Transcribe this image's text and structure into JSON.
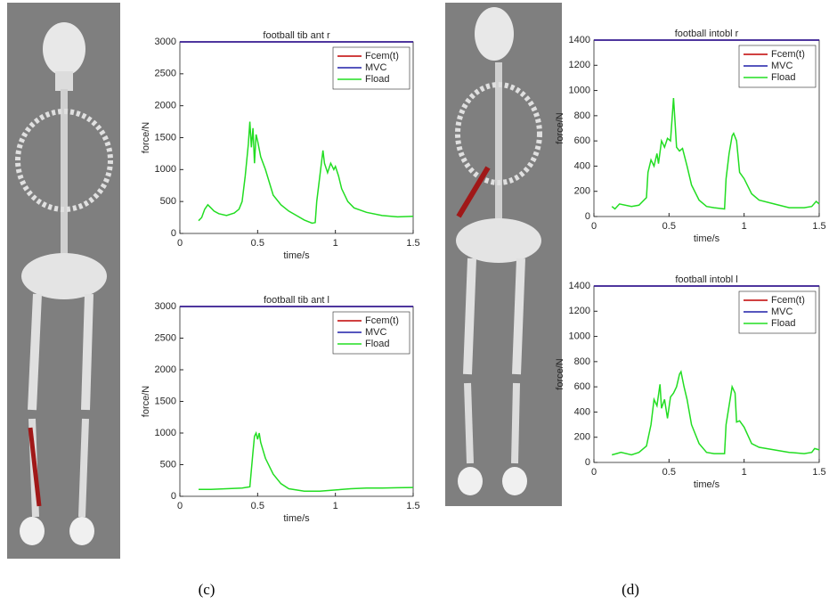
{
  "chart_data": [
    {
      "type": "line",
      "title": "football tib ant r",
      "xlabel": "time/s",
      "ylabel": "force/N",
      "legend": "upper right",
      "xlim": [
        0,
        1.5
      ],
      "xticks": [
        0,
        0.5,
        1,
        1.5
      ],
      "ylim": [
        0,
        3000
      ],
      "yticks": [
        0,
        500,
        1000,
        1500,
        2000,
        2500,
        3000
      ],
      "series": [
        {
          "name": "Fcem(t)",
          "color": "#c00000",
          "x": [
            0,
            1.5
          ],
          "values": [
            3000,
            3000
          ]
        },
        {
          "name": "MVC",
          "color": "#1f1fa8",
          "x": [
            0,
            1.5
          ],
          "values": [
            3000,
            3000
          ]
        },
        {
          "name": "Fload",
          "color": "#22dd22",
          "x": [
            0.12,
            0.14,
            0.16,
            0.18,
            0.2,
            0.22,
            0.25,
            0.3,
            0.35,
            0.38,
            0.4,
            0.42,
            0.44,
            0.45,
            0.46,
            0.47,
            0.48,
            0.49,
            0.5,
            0.52,
            0.55,
            0.6,
            0.65,
            0.7,
            0.75,
            0.8,
            0.85,
            0.87,
            0.88,
            0.9,
            0.92,
            0.93,
            0.95,
            0.97,
            0.99,
            1.0,
            1.02,
            1.04,
            1.08,
            1.12,
            1.2,
            1.3,
            1.4,
            1.5
          ],
          "values": [
            200,
            250,
            380,
            450,
            400,
            350,
            310,
            280,
            320,
            380,
            500,
            900,
            1400,
            1750,
            1350,
            1650,
            1100,
            1550,
            1450,
            1200,
            1000,
            600,
            450,
            350,
            280,
            210,
            160,
            170,
            500,
            900,
            1300,
            1100,
            950,
            1100,
            1000,
            1050,
            900,
            700,
            500,
            400,
            330,
            280,
            260,
            270
          ]
        }
      ]
    },
    {
      "type": "line",
      "title": "football tib ant l",
      "xlabel": "time/s",
      "ylabel": "force/N",
      "legend": "upper right",
      "xlim": [
        0,
        1.5
      ],
      "xticks": [
        0,
        0.5,
        1,
        1.5
      ],
      "ylim": [
        0,
        3000
      ],
      "yticks": [
        0,
        500,
        1000,
        1500,
        2000,
        2500,
        3000
      ],
      "series": [
        {
          "name": "Fcem(t)",
          "color": "#c00000",
          "x": [
            0,
            1.5
          ],
          "values": [
            3000,
            3000
          ]
        },
        {
          "name": "MVC",
          "color": "#1f1fa8",
          "x": [
            0,
            1.5
          ],
          "values": [
            3000,
            3000
          ]
        },
        {
          "name": "Fload",
          "color": "#22dd22",
          "x": [
            0.12,
            0.2,
            0.3,
            0.4,
            0.45,
            0.47,
            0.48,
            0.49,
            0.5,
            0.51,
            0.52,
            0.55,
            0.6,
            0.65,
            0.7,
            0.8,
            0.9,
            1.0,
            1.1,
            1.2,
            1.3,
            1.4,
            1.5
          ],
          "values": [
            110,
            110,
            120,
            130,
            150,
            700,
            950,
            1000,
            900,
            1000,
            850,
            600,
            350,
            200,
            120,
            80,
            80,
            100,
            120,
            130,
            130,
            135,
            140
          ]
        }
      ]
    },
    {
      "type": "line",
      "title": "football intobl r",
      "xlabel": "time/s",
      "ylabel": "force/N",
      "legend": "upper right",
      "xlim": [
        0,
        1.5
      ],
      "xticks": [
        0,
        0.5,
        1,
        1.5
      ],
      "ylim": [
        0,
        1400
      ],
      "yticks": [
        0,
        200,
        400,
        600,
        800,
        1000,
        1200,
        1400
      ],
      "series": [
        {
          "name": "Fcem(t)",
          "color": "#c00000",
          "x": [
            0,
            1.5
          ],
          "values": [
            1400,
            1400
          ]
        },
        {
          "name": "MVC",
          "color": "#1f1fa8",
          "x": [
            0,
            1.5
          ],
          "values": [
            1400,
            1400
          ]
        },
        {
          "name": "Fload",
          "color": "#22dd22",
          "x": [
            0.12,
            0.14,
            0.17,
            0.25,
            0.3,
            0.35,
            0.36,
            0.38,
            0.4,
            0.42,
            0.43,
            0.45,
            0.47,
            0.49,
            0.51,
            0.53,
            0.54,
            0.55,
            0.57,
            0.59,
            0.62,
            0.65,
            0.7,
            0.75,
            0.8,
            0.87,
            0.88,
            0.9,
            0.92,
            0.93,
            0.95,
            0.97,
            1.0,
            1.05,
            1.1,
            1.2,
            1.3,
            1.4,
            1.45,
            1.48,
            1.5
          ],
          "values": [
            80,
            60,
            100,
            80,
            90,
            150,
            350,
            450,
            400,
            500,
            420,
            600,
            550,
            620,
            600,
            940,
            750,
            550,
            520,
            540,
            400,
            250,
            130,
            80,
            70,
            60,
            300,
            500,
            640,
            660,
            600,
            350,
            300,
            180,
            130,
            100,
            70,
            70,
            80,
            120,
            100
          ]
        }
      ]
    },
    {
      "type": "line",
      "title": "football intobl l",
      "xlabel": "time/s",
      "ylabel": "force/N",
      "legend": "upper right",
      "xlim": [
        0,
        1.5
      ],
      "xticks": [
        0,
        0.5,
        1,
        1.5
      ],
      "ylim": [
        0,
        1400
      ],
      "yticks": [
        0,
        200,
        400,
        600,
        800,
        1000,
        1200,
        1400
      ],
      "series": [
        {
          "name": "Fcem(t)",
          "color": "#c00000",
          "x": [
            0,
            1.5
          ],
          "values": [
            1400,
            1400
          ]
        },
        {
          "name": "MVC",
          "color": "#1f1fa8",
          "x": [
            0,
            1.5
          ],
          "values": [
            1400,
            1400
          ]
        },
        {
          "name": "Fload",
          "color": "#22dd22",
          "x": [
            0.12,
            0.15,
            0.18,
            0.25,
            0.3,
            0.35,
            0.38,
            0.4,
            0.42,
            0.44,
            0.45,
            0.47,
            0.49,
            0.51,
            0.53,
            0.55,
            0.57,
            0.58,
            0.6,
            0.62,
            0.65,
            0.7,
            0.75,
            0.8,
            0.87,
            0.88,
            0.9,
            0.92,
            0.94,
            0.95,
            0.97,
            1.0,
            1.05,
            1.1,
            1.2,
            1.3,
            1.4,
            1.45,
            1.47,
            1.5
          ],
          "values": [
            60,
            70,
            80,
            60,
            80,
            130,
            300,
            500,
            450,
            620,
            430,
            500,
            350,
            520,
            550,
            600,
            700,
            720,
            600,
            500,
            300,
            150,
            80,
            70,
            70,
            300,
            450,
            600,
            550,
            320,
            330,
            280,
            150,
            120,
            100,
            80,
            70,
            80,
            110,
            100
          ]
        }
      ]
    }
  ],
  "captions": [
    "(c)",
    "(d)"
  ]
}
